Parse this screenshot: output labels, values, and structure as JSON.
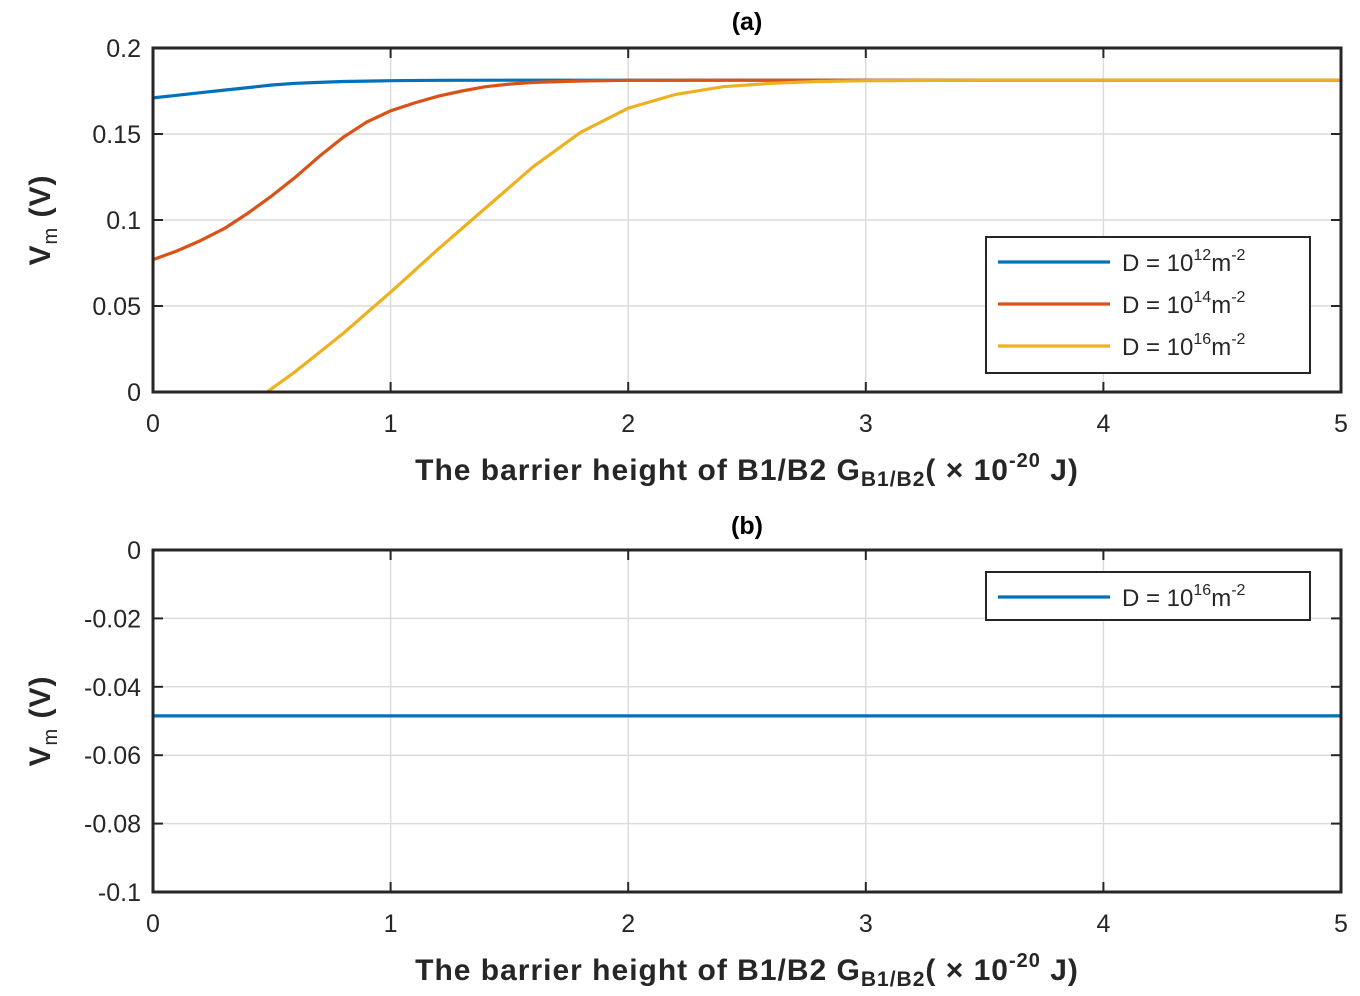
{
  "chart_data": [
    {
      "type": "line",
      "panel_title": "(a)",
      "xlabel": {
        "main": "The barrier height of B1/B2 G",
        "sub": "B1/B2",
        "tail": "( × 10",
        "sup": "-20",
        "end": " J)"
      },
      "ylabel": {
        "main": "V",
        "sub": "m",
        "tail": " (V)"
      },
      "xlim": [
        0,
        5
      ],
      "ylim": [
        0,
        0.2
      ],
      "xticks": [
        0,
        1,
        2,
        3,
        4,
        5
      ],
      "xtick_labels": [
        "0",
        "1",
        "2",
        "3",
        "4",
        "5"
      ],
      "yticks": [
        0,
        0.05,
        0.1,
        0.15,
        0.2
      ],
      "ytick_labels": [
        "0",
        "0.05",
        "0.1",
        "0.15",
        "0.2"
      ],
      "grid": true,
      "legend_position": "right-middle",
      "series": [
        {
          "legend": {
            "prefix": "D  =  10",
            "exp": "12",
            "unit": "m",
            "unit_exp": "-2"
          },
          "color": "#0072BD",
          "x": [
            0,
            0.1,
            0.2,
            0.3,
            0.4,
            0.5,
            0.6,
            0.7,
            0.8,
            1.0,
            1.2,
            1.5,
            2.0,
            3.0,
            4.0,
            5.0
          ],
          "y": [
            0.171,
            0.1725,
            0.174,
            0.1755,
            0.177,
            0.1785,
            0.1795,
            0.18,
            0.1805,
            0.181,
            0.1812,
            0.1813,
            0.1813,
            0.1813,
            0.1813,
            0.1813
          ]
        },
        {
          "legend": {
            "prefix": "D  =  10",
            "exp": "14",
            "unit": "m",
            "unit_exp": "-2"
          },
          "color": "#D95319",
          "x": [
            0,
            0.1,
            0.2,
            0.3,
            0.4,
            0.5,
            0.6,
            0.7,
            0.8,
            0.9,
            1.0,
            1.1,
            1.2,
            1.3,
            1.4,
            1.5,
            1.6,
            1.8,
            2.0,
            2.5,
            3.0,
            4.0,
            5.0
          ],
          "y": [
            0.077,
            0.082,
            0.088,
            0.095,
            0.104,
            0.114,
            0.125,
            0.137,
            0.148,
            0.157,
            0.1635,
            0.168,
            0.172,
            0.175,
            0.1775,
            0.179,
            0.18,
            0.1808,
            0.1812,
            0.1813,
            0.1813,
            0.1813,
            0.1813
          ]
        },
        {
          "legend": {
            "prefix": "D  =  10",
            "exp": "16",
            "unit": "m",
            "unit_exp": "-2"
          },
          "color": "#EDB120",
          "x": [
            0.48,
            0.6,
            0.8,
            1.0,
            1.2,
            1.4,
            1.6,
            1.8,
            2.0,
            2.2,
            2.4,
            2.6,
            2.8,
            3.0,
            3.5,
            4.0,
            5.0
          ],
          "y": [
            0.0,
            0.012,
            0.034,
            0.058,
            0.083,
            0.107,
            0.131,
            0.151,
            0.165,
            0.173,
            0.1775,
            0.1795,
            0.1805,
            0.181,
            0.1813,
            0.1813,
            0.1813
          ]
        }
      ]
    },
    {
      "type": "line",
      "panel_title": "(b)",
      "xlabel": {
        "main": "The barrier height of B1/B2 G",
        "sub": "B1/B2",
        "tail": "( × 10",
        "sup": "-20",
        "end": " J)"
      },
      "ylabel": {
        "main": "V",
        "sub": "m",
        "tail": " (V)"
      },
      "xlim": [
        0,
        5
      ],
      "ylim": [
        -0.1,
        0
      ],
      "xticks": [
        0,
        1,
        2,
        3,
        4,
        5
      ],
      "xtick_labels": [
        "0",
        "1",
        "2",
        "3",
        "4",
        "5"
      ],
      "yticks": [
        -0.1,
        -0.08,
        -0.06,
        -0.04,
        -0.02,
        0
      ],
      "ytick_labels": [
        "-0.1",
        "-0.08",
        "-0.06",
        "-0.04",
        "-0.02",
        "0"
      ],
      "grid": true,
      "legend_position": "top-right",
      "series": [
        {
          "legend": {
            "prefix": "D  =  10",
            "exp": "16",
            "unit": "m",
            "unit_exp": "-2"
          },
          "color": "#0072BD",
          "x": [
            0,
            1,
            2,
            3,
            4,
            5
          ],
          "y": [
            -0.0485,
            -0.0485,
            -0.0485,
            -0.0485,
            -0.0485,
            -0.0485
          ]
        }
      ]
    }
  ]
}
